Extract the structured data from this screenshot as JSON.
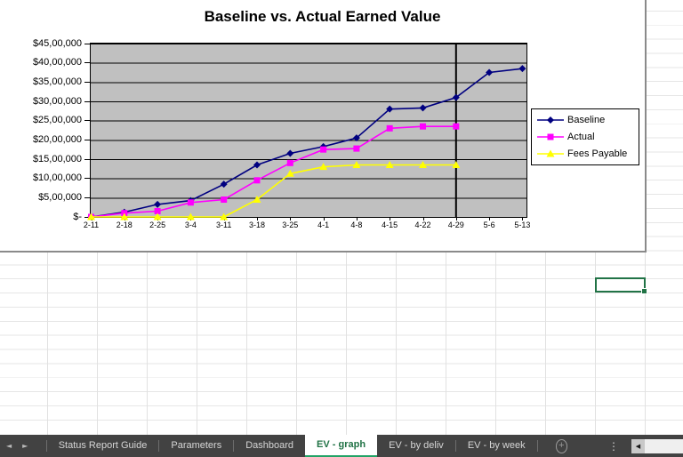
{
  "colors": {
    "excel_green": "#217346",
    "active_tab_underline": "#21a366",
    "plot_background": "#c0c0c0",
    "tab_bar_background": "#424242",
    "chart_border_gray": "#8a8a8a"
  },
  "chart_data": {
    "type": "line",
    "title": "Baseline vs. Actual Earned Value",
    "categories": [
      "2-11",
      "2-18",
      "2-25",
      "3-4",
      "3-11",
      "3-18",
      "3-25",
      "4-1",
      "4-8",
      "4-15",
      "4-22",
      "4-29",
      "5-6",
      "5-13"
    ],
    "series": [
      {
        "name": "Baseline",
        "color": "#000080",
        "marker": "diamond",
        "values": [
          0,
          125000,
          325000,
          425000,
          850000,
          1350000,
          1650000,
          1825000,
          2050000,
          2800000,
          2830000,
          3100000,
          3750000,
          3850000
        ]
      },
      {
        "name": "Actual",
        "color": "#ff00ff",
        "marker": "square",
        "values": [
          0,
          100000,
          150000,
          375000,
          450000,
          950000,
          1400000,
          1750000,
          1775000,
          2300000,
          2350000,
          2350000,
          null,
          null
        ]
      },
      {
        "name": "Fees Payable",
        "color": "#ffff00",
        "marker": "triangle",
        "values": [
          0,
          0,
          0,
          0,
          0,
          450000,
          1125000,
          1300000,
          1350000,
          1350000,
          1350000,
          1350000,
          null,
          null
        ]
      }
    ],
    "y_ticks": [
      "$45,00,000",
      "$40,00,000",
      "$35,00,000",
      "$30,00,000",
      "$25,00,000",
      "$20,00,000",
      "$15,00,000",
      "$10,00,000",
      "$5,00,000",
      "$-"
    ],
    "ylim": [
      0,
      4500000
    ],
    "y_step": 500000,
    "grid": true,
    "legend_position": "right",
    "status_line_category": "4-29"
  },
  "sheet_tabs": {
    "tabs": [
      {
        "label": "Status Report Guide",
        "active": false
      },
      {
        "label": "Parameters",
        "active": false
      },
      {
        "label": "Dashboard",
        "active": false
      },
      {
        "label": "EV - graph",
        "active": true
      },
      {
        "label": "EV - by deliv",
        "active": false
      },
      {
        "label": "EV - by week",
        "active": false
      }
    ]
  },
  "icons": {
    "tab_nav_left": "◄",
    "tab_nav_right": "►",
    "new_sheet": "+",
    "more_options": "⋮",
    "scroll_left": "◀"
  }
}
